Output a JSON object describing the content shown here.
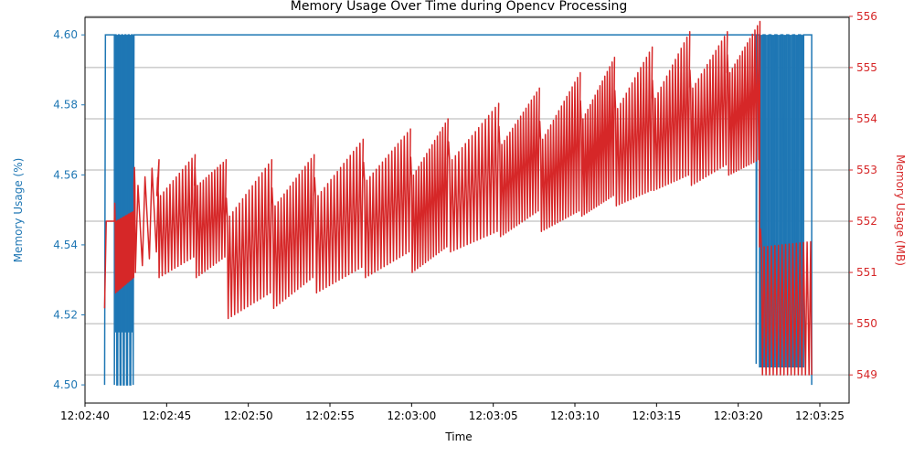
{
  "chart_data": {
    "type": "line",
    "title": "Memory Usage Over Time during Opencv Processing",
    "xlabel": "Time",
    "x_ticks": [
      "12:02:40",
      "12:02:45",
      "12:02:50",
      "12:02:55",
      "12:03:00",
      "12:03:05",
      "12:03:10",
      "12:03:15",
      "12:03:20",
      "12:03:25"
    ],
    "x_range_seconds_from_tick0": [
      -1.1,
      45.7
    ],
    "left_axis": {
      "label": "Memory Usage (%)",
      "color": "#1f77b4",
      "ylim": [
        4.4948,
        4.605
      ],
      "ticks": [
        "4.50",
        "4.52",
        "4.54",
        "4.56",
        "4.58",
        "4.60"
      ]
    },
    "right_axis": {
      "label": "Memory Usage (MB)",
      "color": "#d62728",
      "ylim": [
        548.45,
        555.98
      ],
      "ticks": [
        "549",
        "550",
        "551",
        "552",
        "553",
        "554",
        "555",
        "556"
      ],
      "grid": true
    },
    "series": [
      {
        "axis": "left",
        "color": "#1f77b4",
        "description_points": [
          {
            "t": "12:02:41.2",
            "value": 4.5
          },
          {
            "t": "12:02:41.3",
            "value": 4.6
          },
          {
            "t": "12:02:41.8 to 12:02:43.0",
            "pattern": "oscillation 4.50-4.60"
          },
          {
            "t": "12:02:43.0 to 12:03:21.1",
            "value": 4.6
          },
          {
            "t": "12:03:21.1 to 12:03:24.0",
            "pattern": "oscillation 4.50-4.60"
          },
          {
            "t": "12:03:24.0 to 12:03:24.5",
            "value": 4.6
          },
          {
            "t": "12:03:24.5",
            "value": 4.5
          }
        ]
      },
      {
        "axis": "right",
        "color": "#d62728",
        "segments": [
          {
            "t0": 41.2,
            "t1": 43.3,
            "low_start": 550.3,
            "low_end": 550.4,
            "high_start": 552.0,
            "high_end": 552.1,
            "cycles": 3
          },
          {
            "t0": 41.8,
            "t1": 43.0,
            "low_start": 550.6,
            "low_end": 550.9,
            "high_start": 552.0,
            "high_end": 552.2,
            "cycles": 14
          },
          {
            "t0": 43.0,
            "t1": 44.4,
            "low_start": 551.0,
            "low_end": 551.4,
            "high_start": 552.7,
            "high_end": 553.2,
            "cycles": 4
          },
          {
            "t0": 44.4,
            "t1": 46.7,
            "low_start": 550.9,
            "low_end": 551.3,
            "high_start": 552.5,
            "high_end": 553.3,
            "cycles": 12
          },
          {
            "t0": 46.7,
            "t1": 48.6,
            "low_start": 550.9,
            "low_end": 551.3,
            "high_start": 552.7,
            "high_end": 553.2,
            "cycles": 11
          },
          {
            "t0": 48.6,
            "t1": 51.4,
            "low_start": 550.1,
            "low_end": 550.6,
            "high_start": 552.1,
            "high_end": 553.2,
            "cycles": 14
          },
          {
            "t0": 51.4,
            "t1": 54.0,
            "low_start": 550.3,
            "low_end": 550.9,
            "high_start": 552.3,
            "high_end": 553.3,
            "cycles": 14
          },
          {
            "t0": 54.0,
            "t1": 57.0,
            "low_start": 550.6,
            "low_end": 551.1,
            "high_start": 552.5,
            "high_end": 553.6,
            "cycles": 15
          },
          {
            "t0": 57.0,
            "t1": 59.9,
            "low_start": 550.9,
            "low_end": 551.4,
            "high_start": 552.8,
            "high_end": 553.8,
            "cycles": 15
          },
          {
            "t0": 59.9,
            "t1": 62.2,
            "low_start": 551.0,
            "low_end": 551.5,
            "high_start": 552.9,
            "high_end": 554.0,
            "cycles": 14
          },
          {
            "t0": 62.2,
            "t1": 65.3,
            "low_start": 551.4,
            "low_end": 551.8,
            "high_start": 553.2,
            "high_end": 554.3,
            "cycles": 15
          },
          {
            "t0": 65.3,
            "t1": 67.8,
            "low_start": 551.7,
            "low_end": 552.2,
            "high_start": 553.5,
            "high_end": 554.6,
            "cycles": 15
          },
          {
            "t0": 67.8,
            "t1": 70.3,
            "low_start": 551.8,
            "low_end": 552.2,
            "high_start": 553.6,
            "high_end": 554.9,
            "cycles": 15
          },
          {
            "t0": 70.3,
            "t1": 72.4,
            "low_start": 552.1,
            "low_end": 552.5,
            "high_start": 554.0,
            "high_end": 555.2,
            "cycles": 14
          },
          {
            "t0": 72.4,
            "t1": 74.7,
            "low_start": 552.3,
            "low_end": 552.6,
            "high_start": 554.2,
            "high_end": 555.4,
            "cycles": 13
          },
          {
            "t0": 74.7,
            "t1": 77.0,
            "low_start": 552.6,
            "low_end": 552.9,
            "high_start": 554.4,
            "high_end": 555.7,
            "cycles": 13
          },
          {
            "t0": 77.0,
            "t1": 79.3,
            "low_start": 552.7,
            "low_end": 553.1,
            "high_start": 554.6,
            "high_end": 555.7,
            "cycles": 13
          },
          {
            "t0": 79.3,
            "t1": 81.3,
            "low_start": 552.9,
            "low_end": 553.2,
            "high_start": 554.9,
            "high_end": 555.9,
            "cycles": 13
          },
          {
            "t0": 81.3,
            "t1": 84.4,
            "low_start": 549.0,
            "low_end": 549.0,
            "high_start": 551.5,
            "high_end": 551.6,
            "cycles": 14
          }
        ]
      }
    ]
  }
}
